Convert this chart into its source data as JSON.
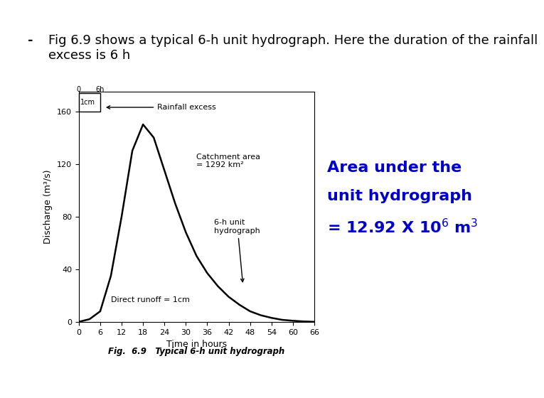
{
  "background_color": "#ffffff",
  "border_color": "#cccccc",
  "title_text": "Fig 6.9 shows a typical 6-h unit hydrograph. Here the duration of the rainfall\nexcess is 6 h",
  "title_color": "#000000",
  "title_fontsize": 13,
  "bullet": "-",
  "hydrograph_x": [
    0,
    3,
    6,
    9,
    12,
    15,
    18,
    21,
    24,
    27,
    30,
    33,
    36,
    39,
    42,
    45,
    48,
    51,
    54,
    57,
    60,
    63,
    66
  ],
  "hydrograph_y": [
    0,
    2,
    8,
    35,
    80,
    130,
    150,
    140,
    115,
    90,
    68,
    50,
    37,
    27,
    19,
    13,
    8,
    5,
    3,
    1.5,
    0.8,
    0.3,
    0
  ],
  "xlabel": "Time in hours",
  "ylabel": "Discharge (m³/s)",
  "xticks": [
    0,
    6,
    12,
    18,
    24,
    30,
    36,
    42,
    48,
    54,
    60,
    66
  ],
  "yticks": [
    0,
    40,
    80,
    120,
    160
  ],
  "xlim": [
    0,
    66
  ],
  "ylim": [
    0,
    175
  ],
  "line_color": "#000000",
  "line_width": 1.8,
  "graph_caption": "Fig.  6.9   Typical 6-h unit hydrograph",
  "rainfall_box_label": "1cm",
  "rainfall_annotation": "Rainfall excess",
  "catchment_annotation": "Catchment area\n= 1292 km²",
  "unit_hydrograph_annotation": "6-h unit\nhydrograph",
  "direct_runoff_annotation": "Direct runoff = 1cm",
  "area_text_line1": "Area under the",
  "area_text_line2": "unit hydrograph",
  "area_text_line3": "= 12.92 X 10",
  "area_color": "#0000cd",
  "area_fontsize": 16
}
